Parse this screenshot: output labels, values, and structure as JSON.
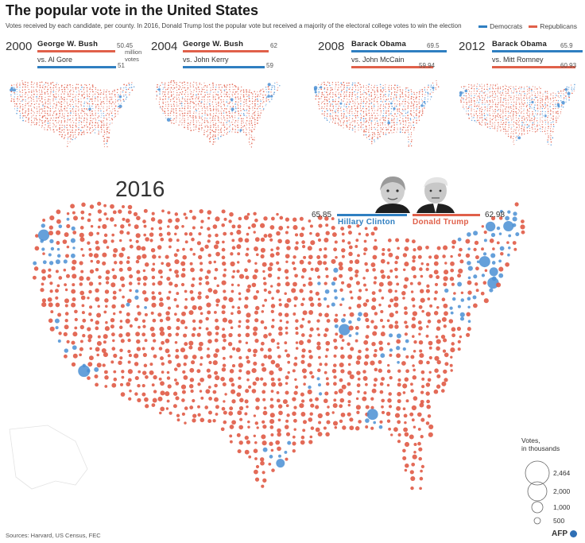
{
  "header": {
    "title": "The popular vote in the United States",
    "subtitle": "Votes received by each candidate, per county. In 2016, Donald Trump lost the popular vote but received a majority of the electoral college votes to win the election",
    "legend": [
      {
        "label": "Democrats",
        "color": "#2f7fc1"
      },
      {
        "label": "Republicans",
        "color": "#e0604a"
      }
    ]
  },
  "colors": {
    "democrat": "#2f7fc1",
    "republican": "#e0604a",
    "dem_dot": "#4a8fd4",
    "rep_dot": "#e05a45"
  },
  "elections": [
    {
      "year": "2000",
      "winner": "George W. Bush",
      "winner_value": "50.45",
      "winner_party": "republican",
      "loser": "vs. Al Gore",
      "loser_value": "51",
      "loser_party": "democrat",
      "unit": "million votes"
    },
    {
      "year": "2004",
      "winner": "George W. Bush",
      "winner_value": "62",
      "winner_party": "republican",
      "loser": "vs. John Kerry",
      "loser_value": "59",
      "loser_party": "democrat"
    },
    {
      "year": "2008",
      "winner": "Barack Obama",
      "winner_value": "69.5",
      "winner_party": "democrat",
      "loser": "vs. John McCain",
      "loser_value": "59.94",
      "loser_party": "republican"
    },
    {
      "year": "2012",
      "winner": "Barack Obama",
      "winner_value": "65.9",
      "winner_party": "democrat",
      "loser": "vs. Mitt Romney",
      "loser_value": "60.93",
      "loser_party": "republican"
    }
  ],
  "main": {
    "year": "2016",
    "clinton": {
      "name": "Hillary Clinton",
      "value": "65.85"
    },
    "trump": {
      "name": "Donald Trump",
      "value": "62.98"
    }
  },
  "size_legend": {
    "title": "Votes,\nin thousands",
    "levels": [
      {
        "label": "2,464",
        "value": 2464
      },
      {
        "label": "2,000",
        "value": 2000
      },
      {
        "label": "1,000",
        "value": 1000
      },
      {
        "label": "500",
        "value": 500
      }
    ]
  },
  "footer": {
    "sources": "Sources: Harvard, US Census, FEC",
    "credit": "AFP"
  }
}
